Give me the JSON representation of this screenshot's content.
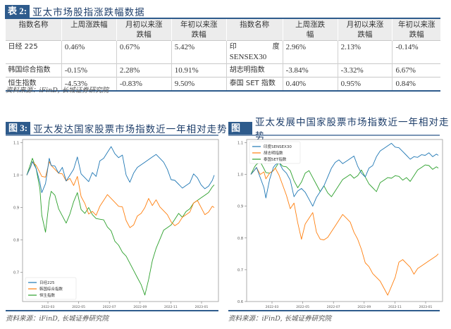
{
  "table": {
    "tag": "表 2:",
    "title": "亚太市场股指涨跌幅数据",
    "headers": [
      "指数名称",
      "上周涨跌幅",
      "月初以来涨跌幅",
      "年初以来涨跌幅",
      "指数名称",
      "上周涨跌幅",
      "月初以来涨跌幅",
      "年初以来涨跌幅"
    ],
    "header_lines": [
      [
        "指数名称",
        ""
      ],
      [
        "上周涨跌幅",
        ""
      ],
      [
        "月初以来涨",
        "跌幅"
      ],
      [
        "年初以来涨",
        "跌幅"
      ],
      [
        "指数名称",
        ""
      ],
      [
        "上周涨跌",
        "幅"
      ],
      [
        "月初以来涨",
        "跌幅"
      ],
      [
        "年初以来涨",
        "跌幅"
      ]
    ],
    "rows": [
      {
        "left": {
          "name": "日经 225",
          "week": "0.46%",
          "month": "0.67%",
          "ytd": "5.42%"
        },
        "right": {
          "name": "印度 SENSEX30",
          "name_a": "印",
          "name_b": "度",
          "name_c": "SENSEX30",
          "week": "2.96%",
          "month": "2.13%",
          "ytd": "-0.14%"
        }
      },
      {
        "left": {
          "name": "韩国综合指数",
          "week": "-0.15%",
          "month": "2.28%",
          "ytd": "10.91%"
        },
        "right": {
          "name": "胡志明指数",
          "week": "-3.84%",
          "month": "-3.32%",
          "ytd": "6.67%"
        }
      },
      {
        "left": {
          "name": "恒生指数",
          "week": "-4.53%",
          "month": "-0.83%",
          "ytd": "9.50%"
        },
        "right": {
          "name": "泰国 SET 指数",
          "week": "0.40%",
          "month": "0.95%",
          "ytd": "0.84%"
        }
      }
    ],
    "source": "资料来源：iFinD, 长城证券研究院"
  },
  "figure3": {
    "tag": "图 3:",
    "title": "亚太发达国家股票市场指数近一年相对走势",
    "source": "资料来源：iFinD, 长城证券研究院"
  },
  "figure4": {
    "tag": "图 4:",
    "title": "亚太发展中国家股票市场指数近一年相对走势",
    "source": "资料来源：iFinD, 长城证券研究院"
  },
  "chart_data": [
    {
      "type": "line",
      "title": "亚太发达国家股票市场指数近一年相对走势",
      "xlabel": "",
      "ylabel": "",
      "x_ticks": [
        "2022-03",
        "2022-05",
        "2022-07",
        "2022-09",
        "2022-11",
        "2023-01"
      ],
      "y_ticks": [
        "0.7",
        "0.8",
        "0.9",
        "1.0",
        "1.1"
      ],
      "ylim": [
        0.61,
        1.11
      ],
      "grid": false,
      "legend_position": "lower left",
      "x": [
        0,
        0.02,
        0.03,
        0.05,
        0.07,
        0.08,
        0.1,
        0.12,
        0.13,
        0.15,
        0.17,
        0.19,
        0.21,
        0.23,
        0.25,
        0.27,
        0.29,
        0.31,
        0.33,
        0.35,
        0.37,
        0.39,
        0.41,
        0.43,
        0.45,
        0.47,
        0.49,
        0.51,
        0.53,
        0.55,
        0.57,
        0.59,
        0.61,
        0.63,
        0.65,
        0.67,
        0.69,
        0.71,
        0.73,
        0.75,
        0.77,
        0.79,
        0.81,
        0.83,
        0.85,
        0.87,
        0.89,
        0.91,
        0.93,
        0.95,
        0.97,
        0.99,
        1.0
      ],
      "series": [
        {
          "name": "日经225",
          "color": "#1f77b4",
          "values": [
            1.0,
            1.02,
            1.04,
            1.02,
            0.98,
            0.95,
            0.97,
            1.05,
            1.03,
            1.03,
            1.01,
            1.02,
            0.98,
            1.0,
            1.02,
            1.06,
            1.0,
            0.99,
            0.98,
            1.01,
            1.0,
            1.04,
            1.05,
            1.07,
            1.09,
            1.07,
            1.05,
            1.06,
            1.0,
            0.98,
            1.01,
            1.02,
            1.03,
            1.04,
            1.05,
            1.06,
            1.06,
            1.05,
            1.04,
            1.02,
            0.99,
            0.98,
            0.97,
            0.96,
            0.97,
            0.98,
            1.0,
            0.99,
            0.97,
            0.96,
            0.97,
            0.98,
            1.0
          ]
        },
        {
          "name": "韩国综合指数",
          "color": "#ff7f0e",
          "values": [
            1.0,
            1.02,
            1.04,
            1.03,
            1.01,
            1.0,
            0.99,
            1.04,
            1.03,
            1.02,
            1.01,
            1.0,
            0.98,
            0.99,
            0.97,
            1.0,
            0.93,
            0.91,
            0.88,
            0.89,
            0.88,
            0.9,
            0.92,
            0.94,
            0.93,
            0.92,
            0.9,
            0.9,
            0.86,
            0.84,
            0.85,
            0.87,
            0.88,
            0.9,
            0.93,
            0.91,
            0.92,
            0.9,
            0.89,
            0.88,
            0.86,
            0.84,
            0.85,
            0.87,
            0.88,
            0.89,
            0.91,
            0.92,
            0.9,
            0.88,
            0.89,
            0.9,
            0.9
          ]
        },
        {
          "name": "恒生指数",
          "color": "#2ca02c",
          "values": [
            1.0,
            1.03,
            1.05,
            1.02,
            0.96,
            0.88,
            0.82,
            0.92,
            0.95,
            0.94,
            0.9,
            0.87,
            0.85,
            0.88,
            0.92,
            0.95,
            0.89,
            0.88,
            0.9,
            0.88,
            0.87,
            0.86,
            0.86,
            0.84,
            0.83,
            0.8,
            0.78,
            0.76,
            0.75,
            0.73,
            0.71,
            0.68,
            0.66,
            0.63,
            0.68,
            0.74,
            0.77,
            0.8,
            0.83,
            0.84,
            0.85,
            0.86,
            0.88,
            0.87,
            0.89,
            0.9,
            0.91,
            0.92,
            0.93,
            0.94,
            0.95,
            0.96,
            0.97
          ]
        }
      ]
    },
    {
      "type": "line",
      "title": "亚太发展中国家股票市场指数近一年相对走势",
      "xlabel": "",
      "ylabel": "",
      "x_ticks": [
        "2022-03",
        "2022-05",
        "2022-07",
        "2022-09",
        "2022-11",
        "2023-01"
      ],
      "y_ticks": [
        "0.6",
        "0.7",
        "0.8",
        "0.9",
        "1.0",
        "1.1"
      ],
      "ylim": [
        0.6,
        1.11
      ],
      "grid": false,
      "legend_position": "upper left",
      "x": [
        0,
        0.02,
        0.03,
        0.05,
        0.07,
        0.08,
        0.1,
        0.12,
        0.13,
        0.15,
        0.17,
        0.19,
        0.21,
        0.23,
        0.25,
        0.27,
        0.29,
        0.31,
        0.33,
        0.35,
        0.37,
        0.39,
        0.41,
        0.43,
        0.45,
        0.47,
        0.49,
        0.51,
        0.53,
        0.55,
        0.57,
        0.59,
        0.61,
        0.63,
        0.65,
        0.67,
        0.69,
        0.71,
        0.73,
        0.75,
        0.77,
        0.79,
        0.81,
        0.83,
        0.85,
        0.87,
        0.89,
        0.91,
        0.93,
        0.95,
        0.97,
        0.99,
        1.0
      ],
      "series": [
        {
          "name": "印度SENSEX30",
          "color": "#1f77b4",
          "values": [
            1.0,
            1.01,
            1.02,
            0.99,
            0.96,
            0.93,
            0.98,
            1.02,
            1.03,
            1.04,
            1.02,
            1.0,
            0.98,
            0.93,
            0.95,
            0.96,
            0.94,
            0.92,
            0.9,
            0.93,
            0.95,
            0.96,
            0.99,
            1.02,
            1.04,
            1.05,
            1.03,
            1.04,
            1.05,
            1.06,
            1.03,
            1.0,
            0.99,
            1.02,
            1.03,
            1.06,
            1.07,
            1.08,
            1.09,
            1.1,
            1.09,
            1.08,
            1.07,
            1.06,
            1.05,
            1.06,
            1.05,
            1.06,
            1.06,
            1.07,
            1.06,
            1.06,
            1.06
          ]
        },
        {
          "name": "胡志明指数",
          "color": "#ff7f0e",
          "values": [
            1.0,
            1.01,
            1.02,
            1.0,
            1.01,
            0.99,
            1.0,
            1.01,
            1.02,
            1.0,
            0.97,
            0.93,
            0.89,
            0.91,
            0.85,
            0.8,
            0.84,
            0.86,
            0.88,
            0.82,
            0.8,
            0.79,
            0.8,
            0.82,
            0.84,
            0.86,
            0.87,
            0.86,
            0.85,
            0.82,
            0.8,
            0.76,
            0.72,
            0.71,
            0.69,
            0.68,
            0.66,
            0.64,
            0.62,
            0.65,
            0.68,
            0.72,
            0.73,
            0.72,
            0.71,
            0.69,
            0.7,
            0.71,
            0.72,
            0.73,
            0.74,
            0.74,
            0.75
          ]
        },
        {
          "name": "泰国SET指数",
          "color": "#2ca02c",
          "values": [
            1.0,
            1.02,
            1.03,
            1.04,
            1.02,
            1.01,
            1.0,
            1.01,
            1.02,
            1.04,
            1.03,
            1.02,
            1.01,
            0.98,
            0.96,
            0.98,
            1.0,
            1.01,
            0.99,
            0.97,
            0.95,
            0.96,
            0.94,
            0.93,
            0.95,
            0.97,
            0.98,
            0.99,
            1.0,
            0.99,
            1.0,
            1.01,
            0.99,
            0.97,
            0.96,
            0.95,
            0.97,
            0.98,
            0.99,
            0.99,
            1.0,
            0.99,
            0.98,
            0.99,
            0.98,
            1.0,
            1.01,
            1.02,
            1.03,
            1.03,
            1.02,
            1.02,
            1.02
          ]
        }
      ]
    }
  ]
}
